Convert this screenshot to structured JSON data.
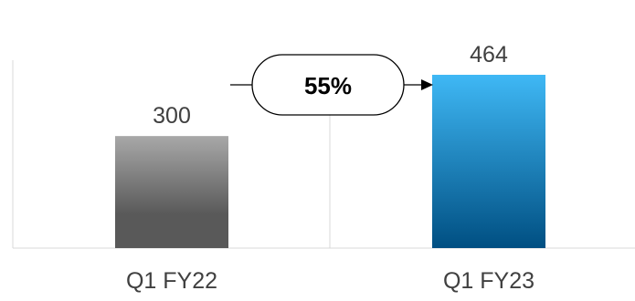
{
  "chart_data": {
    "type": "bar",
    "categories": [
      "Q1 FY22",
      "Q1 FY23"
    ],
    "values": [
      300,
      464
    ],
    "value_labels": [
      "300",
      "464"
    ],
    "ylim": [
      0,
      464
    ],
    "grid": "vertical separators",
    "colors": {
      "bar_q1fy22_top": "#a8a8a8",
      "bar_q1fy22_bottom": "#595959",
      "bar_q1fy23_top": "#3fb8f5",
      "bar_q1fy23_bottom": "#004f82"
    },
    "growth_annotation": {
      "label": "55%",
      "from": "Q1 FY22",
      "to": "Q1 FY23"
    }
  }
}
